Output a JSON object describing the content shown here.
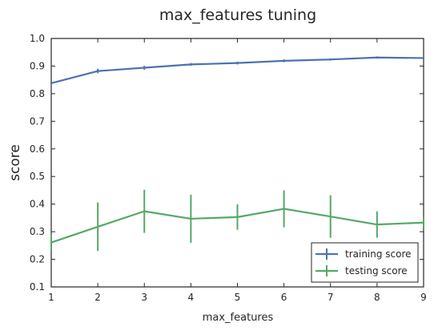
{
  "chart_data": {
    "type": "line",
    "title": "max_features tuning",
    "xlabel": "max_features",
    "ylabel": "score",
    "x": [
      1,
      2,
      3,
      4,
      5,
      6,
      7,
      8,
      9
    ],
    "xlim": [
      1,
      9
    ],
    "ylim": [
      0.1,
      1.0
    ],
    "xticks": [
      "1",
      "2",
      "3",
      "4",
      "5",
      "6",
      "7",
      "8",
      "9"
    ],
    "yticks": [
      "0.1",
      "0.2",
      "0.3",
      "0.4",
      "0.5",
      "0.6",
      "0.7",
      "0.8",
      "0.9",
      "1.0"
    ],
    "grid": false,
    "legend_position": "lower-right",
    "series": [
      {
        "name": "training score",
        "color": "#4c72b0",
        "values": [
          0.838,
          0.882,
          0.894,
          0.906,
          0.911,
          0.919,
          0.924,
          0.931,
          0.929
        ],
        "errors": [
          0.004,
          0.008,
          0.007,
          0.005,
          0.005,
          0.005,
          0.004,
          0.004,
          0.003
        ]
      },
      {
        "name": "testing score",
        "color": "#55a868",
        "values": [
          0.261,
          0.318,
          0.374,
          0.347,
          0.353,
          0.383,
          0.355,
          0.326,
          0.333
        ],
        "errors": [
          0.03,
          0.088,
          0.078,
          0.087,
          0.046,
          0.067,
          0.077,
          0.048,
          0.02
        ]
      }
    ]
  }
}
